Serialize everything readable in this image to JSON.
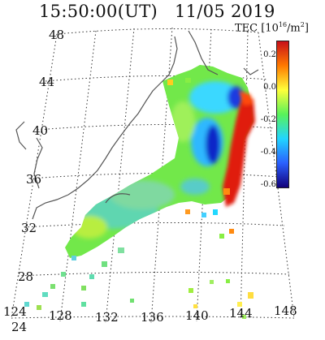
{
  "title": {
    "time": "15:50:00(UT)",
    "date": "11/05 2019"
  },
  "colorbar": {
    "label_prefix": "TEC [10",
    "label_exp": "16",
    "label_suffix": "/m",
    "label_sup2": "2",
    "label_close": "]",
    "ticks": [
      "0.2",
      "0.0",
      "-0.2",
      "-0.4",
      "-0.6"
    ],
    "colors": [
      "#c8101a",
      "#ff7a00",
      "#ffff3a",
      "#58f25a",
      "#22d5ff",
      "#2a60ff",
      "#12007a"
    ]
  },
  "lat_labels": [
    "48",
    "44",
    "40",
    "36",
    "32",
    "28",
    "24"
  ],
  "lon_labels": [
    "124",
    "128",
    "132",
    "136",
    "140",
    "144",
    "148"
  ]
}
